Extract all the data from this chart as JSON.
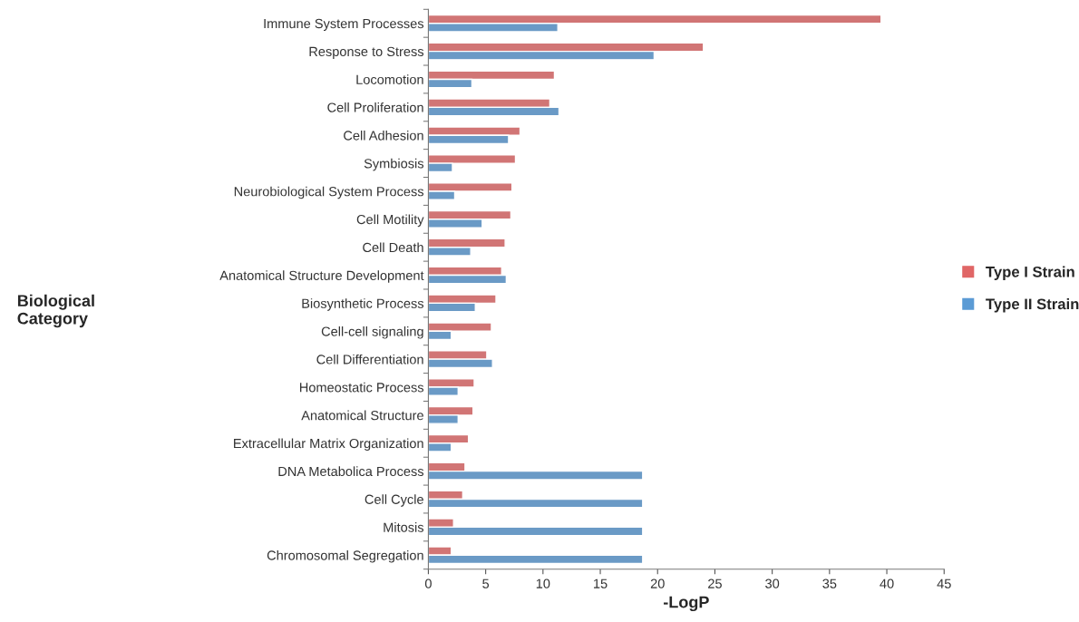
{
  "chart_data": {
    "type": "bar",
    "orientation": "horizontal",
    "xlabel": "-LogP",
    "annotations": [
      "Biological\nCategory"
    ],
    "categories": [
      "Immune System Processes",
      "Response to Stress",
      "Locomotion",
      "Cell Proliferation",
      "Cell Adhesion",
      "Symbiosis",
      "Neurobiological System Process",
      "Cell Motility",
      "Cell Death",
      "Anatomical Structure Development",
      "Biosynthetic Process",
      "Cell-cell signaling",
      "Cell Differentiation",
      "Homeostatic Process",
      "Anatomical Structure",
      "Extracellular Matrix Organization",
      "DNA Metabolica Process",
      "Cell Cycle",
      "Mitosis",
      "Chromosomal Segregation"
    ],
    "series": [
      {
        "name": "Type I Strain",
        "color": "#e06666",
        "values": [
          39.5,
          24.0,
          11.0,
          10.6,
          8.0,
          7.6,
          7.3,
          7.2,
          6.7,
          6.4,
          5.9,
          5.5,
          5.1,
          4.0,
          3.9,
          3.5,
          3.2,
          3.0,
          2.2,
          2.0
        ]
      },
      {
        "name": "Type II Strain",
        "color": "#5b9bd5",
        "values": [
          11.3,
          19.7,
          3.8,
          11.4,
          7.0,
          2.1,
          2.3,
          4.7,
          3.7,
          6.8,
          4.1,
          2.0,
          5.6,
          2.6,
          2.6,
          2.0,
          18.7,
          18.7,
          18.7,
          18.7
        ]
      }
    ],
    "xlim": [
      0,
      45
    ],
    "xticks": [
      0,
      5,
      10,
      15,
      20,
      25,
      30,
      35,
      40,
      45
    ],
    "grid": false,
    "legend": "right"
  }
}
